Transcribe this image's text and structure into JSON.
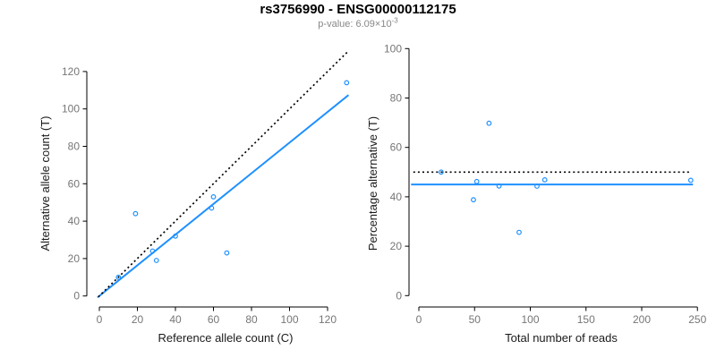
{
  "title": "rs3756990 - ENSG00000112175",
  "subtitle": {
    "text": "p-value: 6.09×10",
    "exponent": "-3"
  },
  "colors": {
    "accent_blue": "#1E90FF",
    "line_black": "#000000",
    "tick_label_gray": "#767676",
    "subtitle_gray": "#878787",
    "axis_title_black": "#1a1a1a"
  },
  "chart_data": [
    {
      "type": "scatter",
      "panel": "left",
      "xlabel": "Reference allele count (C)",
      "ylabel": "Alternative allele count (T)",
      "xlim": [
        0,
        130
      ],
      "ylim": [
        0,
        130
      ],
      "xticks": [
        0,
        20,
        40,
        60,
        80,
        100,
        120
      ],
      "yticks": [
        0,
        20,
        40,
        60,
        80,
        100,
        120
      ],
      "grid": false,
      "legend": "none",
      "points": [
        [
          10,
          10
        ],
        [
          19,
          44
        ],
        [
          28,
          24
        ],
        [
          30,
          19
        ],
        [
          40,
          32
        ],
        [
          59,
          47
        ],
        [
          60,
          53
        ],
        [
          67,
          23
        ],
        [
          130,
          114
        ]
      ],
      "lines": [
        {
          "name": "fitted-proportion-line",
          "style": "solid",
          "color": "#1E90FF",
          "x1": -1,
          "y1": -0.82,
          "x2": 131,
          "y2": 107.4
        },
        {
          "name": "identity-line",
          "style": "dotted",
          "color": "#000000",
          "x1": -0.5,
          "y1": -0.5,
          "x2": 131,
          "y2": 131
        }
      ]
    },
    {
      "type": "scatter",
      "panel": "right",
      "xlabel": "Total number of reads",
      "ylabel": "Percentage alternative (T)",
      "xlim": [
        0,
        250
      ],
      "ylim": [
        0,
        100
      ],
      "xticks": [
        0,
        50,
        100,
        150,
        200,
        250
      ],
      "yticks": [
        0,
        20,
        40,
        60,
        80,
        100
      ],
      "grid": false,
      "legend": "none",
      "points": [
        [
          20,
          50
        ],
        [
          49,
          38.8
        ],
        [
          52,
          46.2
        ],
        [
          63,
          69.8
        ],
        [
          72,
          44.4
        ],
        [
          90,
          25.6
        ],
        [
          106,
          44.3
        ],
        [
          113,
          46.9
        ],
        [
          244,
          46.7
        ]
      ],
      "lines": [
        {
          "name": "fitted-percentage-line",
          "style": "solid",
          "color": "#1E90FF",
          "x1": -7,
          "y1": 45,
          "x2": 246,
          "y2": 45
        },
        {
          "name": "expected-50pct-line",
          "style": "dotted",
          "color": "#000000",
          "x1": -5,
          "y1": 50,
          "x2": 243,
          "y2": 50
        }
      ]
    }
  ]
}
